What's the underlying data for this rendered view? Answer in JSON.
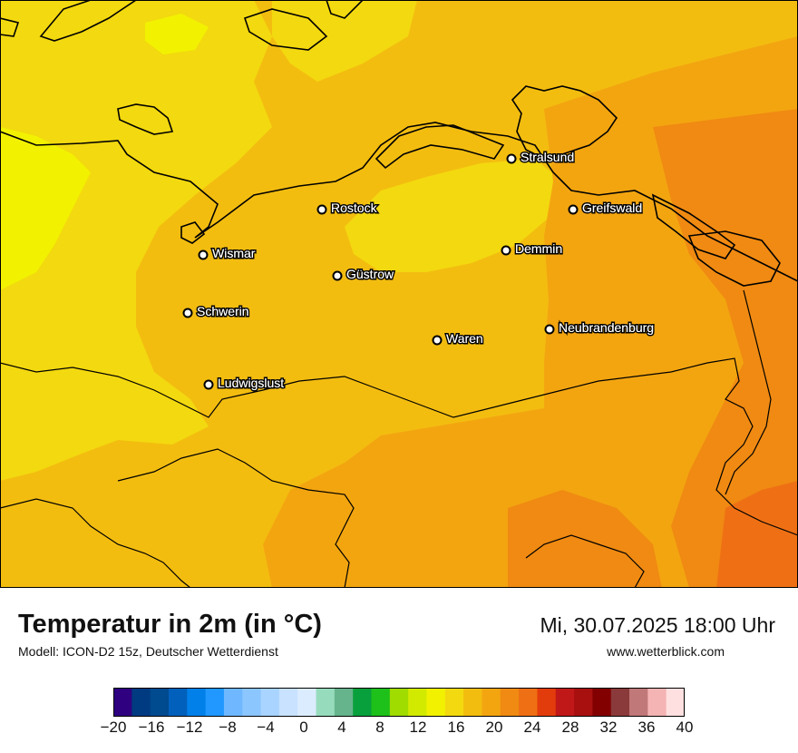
{
  "map": {
    "colors": {
      "t14": "#f2f200",
      "t16": "#f3d90f",
      "t18": "#f3bd10",
      "t20": "#f3a510",
      "t22": "#f08a12",
      "t24": "#ef7014",
      "border": "#000000",
      "coast": "#000000"
    },
    "cities": [
      {
        "name": "Stralsund",
        "marker": "city-marker"
      },
      {
        "name": "Rostock",
        "marker": "city-marker"
      },
      {
        "name": "Greifswald",
        "marker": "city-marker"
      },
      {
        "name": "Wismar",
        "marker": "city-marker"
      },
      {
        "name": "Demmin",
        "marker": "city-marker"
      },
      {
        "name": "Güstrow",
        "marker": "city-marker"
      },
      {
        "name": "Schwerin",
        "marker": "city-marker"
      },
      {
        "name": "Neubrandenburg",
        "marker": "city-marker"
      },
      {
        "name": "Waren",
        "marker": "city-marker"
      },
      {
        "name": "Ludwigslust",
        "marker": "city-marker"
      }
    ]
  },
  "footer": {
    "title": "Temperatur in 2m (in °C)",
    "model": "Modell: ICON-D2 15z, Deutscher Wetterdienst",
    "datetime": "Mi, 30.07.2025 18:00 Uhr",
    "website": "www.wetterblick.com"
  },
  "legend": {
    "min": -20,
    "max": 40,
    "step": 2,
    "tick_labels": [
      "−20",
      "−16",
      "−12",
      "−8",
      "−4",
      "0",
      "4",
      "8",
      "12",
      "16",
      "20",
      "24",
      "28",
      "32",
      "36",
      "40"
    ],
    "colors": [
      "#2f0080",
      "#003a80",
      "#004a8f",
      "#0060bb",
      "#0080e8",
      "#2098ff",
      "#6fb8ff",
      "#8cc6ff",
      "#a8d4ff",
      "#c8e2ff",
      "#dcecff",
      "#96dcbc",
      "#66b48c",
      "#08a03c",
      "#1ec01a",
      "#a0dc00",
      "#d2ea00",
      "#f2f200",
      "#f3d90f",
      "#f3bd10",
      "#f3a510",
      "#f08a12",
      "#ef7014",
      "#e33c0c",
      "#c01818",
      "#a81010",
      "#820000",
      "#8a3a3a",
      "#c07878",
      "#f4b4b4",
      "#ffe0e0"
    ]
  }
}
